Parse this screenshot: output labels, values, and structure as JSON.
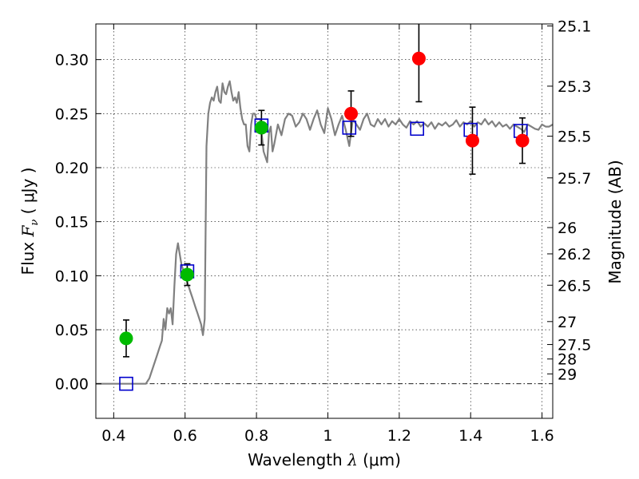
{
  "chart_data": {
    "type": "scatter",
    "xlabel_main": "Wavelength",
    "xlabel_sym": "λ",
    "xlabel_unit": "(μm)",
    "ylabel_main": "Flux",
    "ylabel_sym": "F",
    "ylabel_sub": "ν",
    "ylabel_unit": "( μJy )",
    "y2label": "Magnitude (AB)",
    "xlim": [
      0.35,
      1.63
    ],
    "ylim": [
      -0.032,
      0.333
    ],
    "grid": true,
    "xticks": [
      {
        "value": 0.4,
        "label": "0.4"
      },
      {
        "value": 0.6,
        "label": "0.6"
      },
      {
        "value": 0.8,
        "label": "0.8"
      },
      {
        "value": 1.0,
        "label": "1"
      },
      {
        "value": 1.2,
        "label": "1.2"
      },
      {
        "value": 1.4,
        "label": "1.4"
      },
      {
        "value": 1.6,
        "label": "1.6"
      }
    ],
    "yticks": [
      {
        "value": 0.0,
        "label": "0.00"
      },
      {
        "value": 0.05,
        "label": "0.05"
      },
      {
        "value": 0.1,
        "label": "0.10"
      },
      {
        "value": 0.15,
        "label": "0.15"
      },
      {
        "value": 0.2,
        "label": "0.20"
      },
      {
        "value": 0.25,
        "label": "0.25"
      },
      {
        "value": 0.3,
        "label": "0.30"
      }
    ],
    "y2ticks": [
      {
        "mag": 25.1,
        "label": "25.1"
      },
      {
        "mag": 25.3,
        "label": "25.3"
      },
      {
        "mag": 25.5,
        "label": "25.5"
      },
      {
        "mag": 25.7,
        "label": "25.7"
      },
      {
        "mag": 26.0,
        "label": "26"
      },
      {
        "mag": 26.2,
        "label": "26.2"
      },
      {
        "mag": 26.5,
        "label": "26.5"
      },
      {
        "mag": 27.0,
        "label": "27"
      },
      {
        "mag": 27.5,
        "label": "27.5"
      },
      {
        "mag": 28.0,
        "label": "28"
      },
      {
        "mag": 29.0,
        "label": "29"
      }
    ],
    "model_spectrum": {
      "color": "#808080",
      "x": [
        0.35,
        0.49,
        0.5,
        0.51,
        0.52,
        0.53,
        0.535,
        0.54,
        0.545,
        0.55,
        0.555,
        0.56,
        0.565,
        0.57,
        0.575,
        0.58,
        0.585,
        0.59,
        0.595,
        0.6,
        0.605,
        0.61,
        0.615,
        0.62,
        0.625,
        0.63,
        0.635,
        0.64,
        0.645,
        0.65,
        0.655,
        0.66,
        0.665,
        0.67,
        0.675,
        0.68,
        0.685,
        0.69,
        0.695,
        0.7,
        0.705,
        0.71,
        0.715,
        0.72,
        0.725,
        0.73,
        0.735,
        0.74,
        0.745,
        0.75,
        0.755,
        0.76,
        0.765,
        0.77,
        0.775,
        0.78,
        0.785,
        0.79,
        0.795,
        0.8,
        0.81,
        0.82,
        0.83,
        0.835,
        0.84,
        0.845,
        0.85,
        0.86,
        0.87,
        0.88,
        0.89,
        0.9,
        0.91,
        0.92,
        0.93,
        0.94,
        0.95,
        0.96,
        0.97,
        0.98,
        0.99,
        1.0,
        1.01,
        1.02,
        1.03,
        1.04,
        1.05,
        1.06,
        1.07,
        1.08,
        1.09,
        1.1,
        1.11,
        1.12,
        1.13,
        1.14,
        1.15,
        1.16,
        1.17,
        1.18,
        1.19,
        1.2,
        1.21,
        1.22,
        1.23,
        1.24,
        1.25,
        1.26,
        1.27,
        1.28,
        1.29,
        1.3,
        1.31,
        1.32,
        1.33,
        1.34,
        1.35,
        1.36,
        1.37,
        1.38,
        1.39,
        1.4,
        1.41,
        1.42,
        1.43,
        1.44,
        1.45,
        1.46,
        1.47,
        1.48,
        1.49,
        1.5,
        1.51,
        1.52,
        1.53,
        1.54,
        1.55,
        1.56,
        1.57,
        1.58,
        1.59,
        1.6,
        1.61,
        1.62,
        1.63
      ],
      "y": [
        0.0,
        0.0,
        0.005,
        0.015,
        0.025,
        0.035,
        0.04,
        0.06,
        0.05,
        0.07,
        0.065,
        0.07,
        0.055,
        0.09,
        0.12,
        0.13,
        0.12,
        0.11,
        0.105,
        0.1,
        0.095,
        0.09,
        0.085,
        0.08,
        0.075,
        0.07,
        0.065,
        0.06,
        0.055,
        0.045,
        0.06,
        0.22,
        0.25,
        0.26,
        0.265,
        0.262,
        0.27,
        0.275,
        0.262,
        0.26,
        0.278,
        0.27,
        0.268,
        0.275,
        0.28,
        0.27,
        0.262,
        0.265,
        0.26,
        0.27,
        0.255,
        0.245,
        0.24,
        0.24,
        0.22,
        0.215,
        0.24,
        0.25,
        0.25,
        0.245,
        0.245,
        0.215,
        0.205,
        0.232,
        0.238,
        0.215,
        0.222,
        0.24,
        0.23,
        0.245,
        0.25,
        0.248,
        0.238,
        0.242,
        0.25,
        0.245,
        0.235,
        0.245,
        0.253,
        0.24,
        0.232,
        0.255,
        0.245,
        0.23,
        0.24,
        0.248,
        0.235,
        0.22,
        0.245,
        0.24,
        0.235,
        0.245,
        0.25,
        0.24,
        0.238,
        0.245,
        0.24,
        0.245,
        0.238,
        0.243,
        0.24,
        0.245,
        0.24,
        0.237,
        0.243,
        0.24,
        0.243,
        0.238,
        0.241,
        0.238,
        0.242,
        0.236,
        0.241,
        0.239,
        0.242,
        0.238,
        0.24,
        0.244,
        0.238,
        0.242,
        0.24,
        0.243,
        0.238,
        0.242,
        0.24,
        0.245,
        0.24,
        0.243,
        0.238,
        0.242,
        0.238,
        0.24,
        0.236,
        0.24,
        0.238,
        0.236,
        0.233,
        0.24,
        0.238,
        0.236,
        0.235,
        0.24,
        0.238,
        0.238,
        0.24
      ]
    },
    "model_photometry": {
      "color": "#0000cc",
      "marker": "open-square",
      "x": [
        0.435,
        0.606,
        0.814,
        1.06,
        1.25,
        1.4,
        1.54
      ],
      "y": [
        0.0,
        0.104,
        0.239,
        0.237,
        0.236,
        0.235,
        0.234
      ]
    },
    "hst_acs_photometry": {
      "color": "#00bb00",
      "marker": "filled-circle",
      "x": [
        0.435,
        0.606,
        0.814
      ],
      "y": [
        0.042,
        0.101,
        0.237
      ],
      "yerr": [
        0.017,
        0.01,
        0.016
      ]
    },
    "hst_wfc3_photometry": {
      "color": "#ff0000",
      "marker": "filled-circle",
      "x": [
        1.065,
        1.255,
        1.405,
        1.545
      ],
      "y": [
        0.25,
        0.301,
        0.225,
        0.225
      ],
      "yerr": [
        0.021,
        0.04,
        0.031,
        0.021
      ]
    }
  }
}
